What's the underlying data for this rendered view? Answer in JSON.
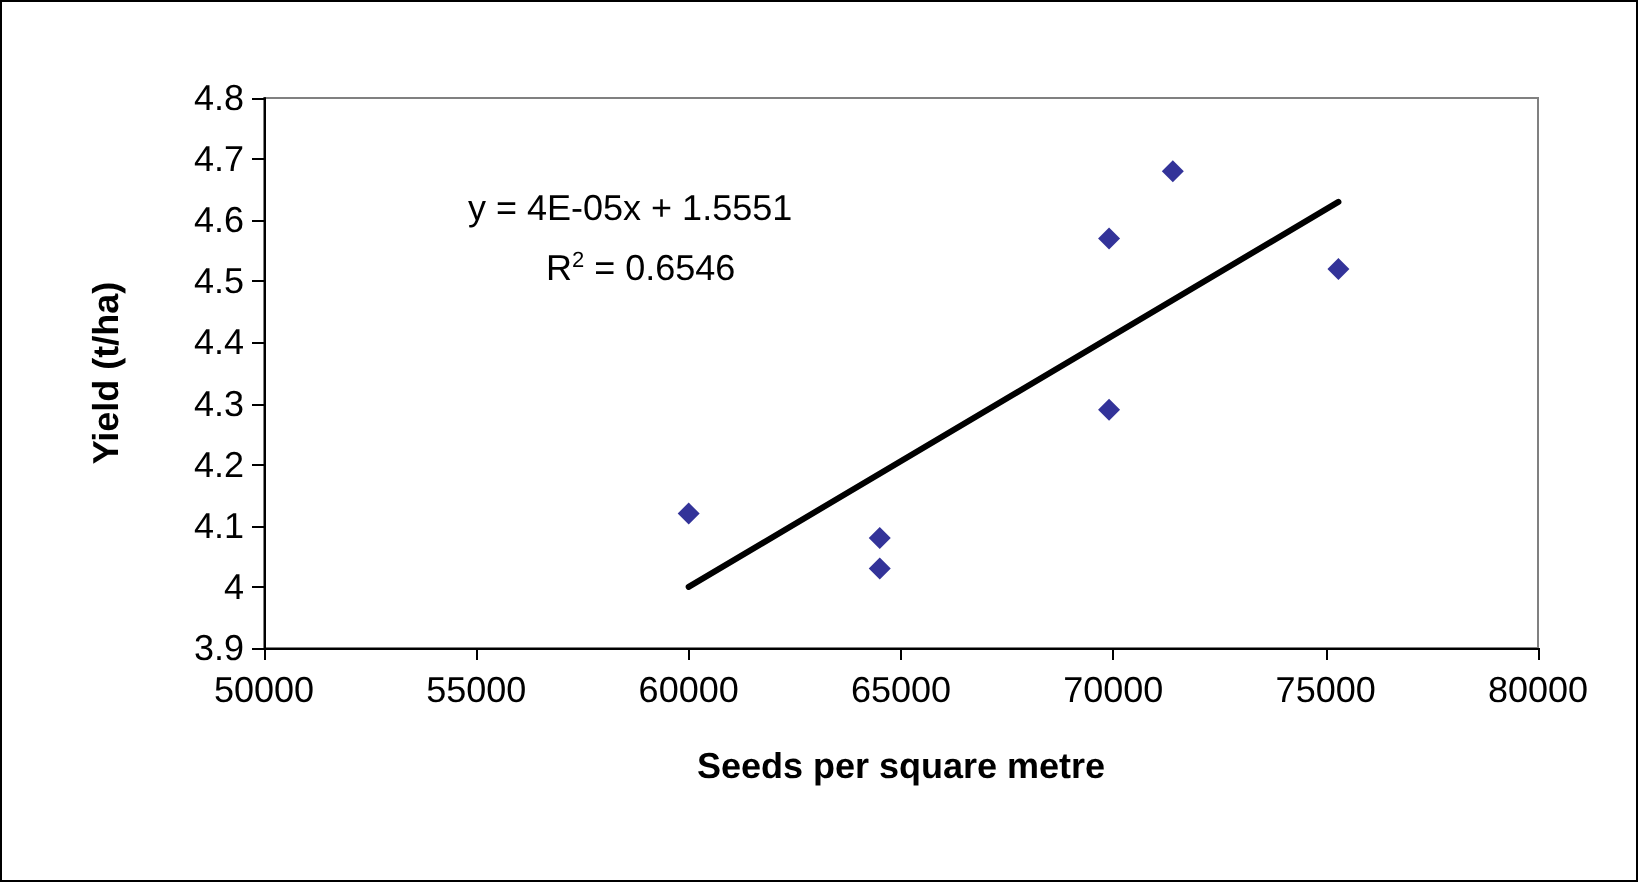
{
  "chart_data": {
    "type": "scatter",
    "xlabel": "Seeds per square metre",
    "ylabel": "Yield (t/ha)",
    "xlim": [
      50000,
      80000
    ],
    "xticks": [
      50000,
      55000,
      60000,
      65000,
      70000,
      75000,
      80000
    ],
    "ylim": [
      3.9,
      4.8
    ],
    "yticks": [
      3.9,
      4,
      4.1,
      4.2,
      4.3,
      4.4,
      4.5,
      4.6,
      4.7,
      4.8
    ],
    "grid": false,
    "marker": "diamond",
    "annotations": [
      "y = 4E-05x + 1.5551",
      "R$^{2}$ = 0.6546"
    ],
    "series": [
      {
        "color": "#000080",
        "x": [
          60000,
          64500,
          64500,
          69900,
          69900,
          71400,
          75300
        ],
        "values": [
          4.12,
          4.08,
          4.03,
          4.57,
          4.29,
          4.68,
          4.52
        ]
      },
      {
        "type": "line",
        "color": "#000000",
        "marker": "none",
        "line_style": "solid",
        "x": [
          60000,
          75300
        ],
        "values": [
          4.0,
          4.63
        ]
      }
    ]
  }
}
